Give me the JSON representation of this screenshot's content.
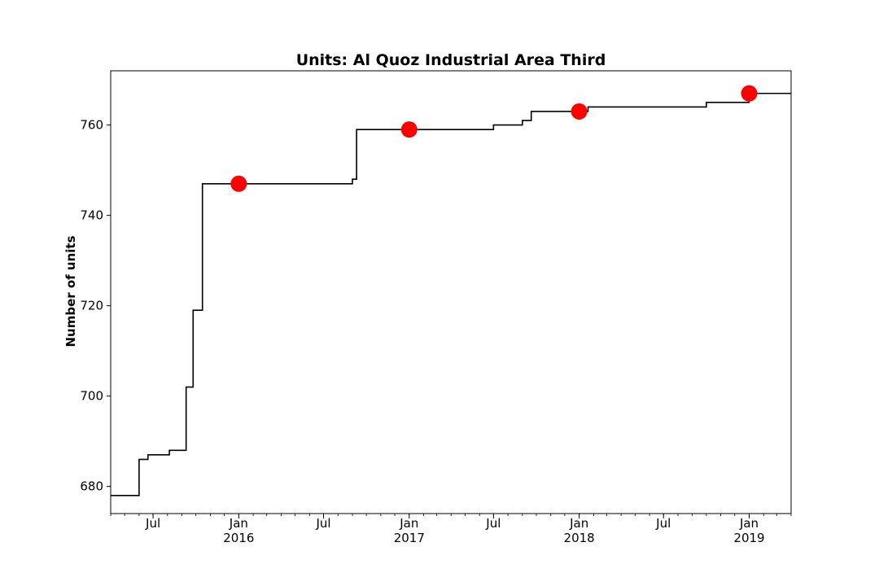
{
  "chart_data": {
    "type": "line",
    "title": "Units: Al Quoz Industrial Area Third",
    "xlabel": "",
    "ylabel": "Number of units",
    "xlim": [
      "2015-04-01",
      "2019-04-01"
    ],
    "ylim": [
      674,
      772
    ],
    "grid": false,
    "series": [
      {
        "style": "step",
        "color": "#000000",
        "x": [
          "2015-04-01",
          "2015-06-01",
          "2015-06-20",
          "2015-07-01",
          "2015-08-05",
          "2015-09-10",
          "2015-09-25",
          "2015-10-15",
          "2016-09-01",
          "2016-09-10",
          "2017-07-01",
          "2017-09-01",
          "2017-09-20",
          "2018-01-20",
          "2018-10-01",
          "2019-01-01",
          "2019-04-01"
        ],
        "y": [
          678,
          686,
          687,
          687,
          688,
          702,
          719,
          747,
          748,
          759,
          760,
          761,
          763,
          764,
          765,
          767,
          767
        ]
      },
      {
        "style": "marker",
        "color": "#ff0000",
        "x": [
          "2016-01-01",
          "2017-01-01",
          "2018-01-01",
          "2019-01-01"
        ],
        "y": [
          747,
          759,
          763,
          767
        ]
      }
    ],
    "yticks": [
      {
        "value": 680,
        "label": "680"
      },
      {
        "value": 700,
        "label": "700"
      },
      {
        "value": 720,
        "label": "720"
      },
      {
        "value": 740,
        "label": "740"
      },
      {
        "value": 760,
        "label": "760"
      }
    ],
    "xticks": [
      {
        "date": "2015-07-01",
        "label": "Jul",
        "sublabel": ""
      },
      {
        "date": "2016-01-01",
        "label": "Jan",
        "sublabel": "2016"
      },
      {
        "date": "2016-07-01",
        "label": "Jul",
        "sublabel": ""
      },
      {
        "date": "2017-01-01",
        "label": "Jan",
        "sublabel": "2017"
      },
      {
        "date": "2017-07-01",
        "label": "Jul",
        "sublabel": ""
      },
      {
        "date": "2018-01-01",
        "label": "Jan",
        "sublabel": "2018"
      },
      {
        "date": "2018-07-01",
        "label": "Jul",
        "sublabel": ""
      },
      {
        "date": "2019-01-01",
        "label": "Jan",
        "sublabel": "2019"
      }
    ]
  }
}
